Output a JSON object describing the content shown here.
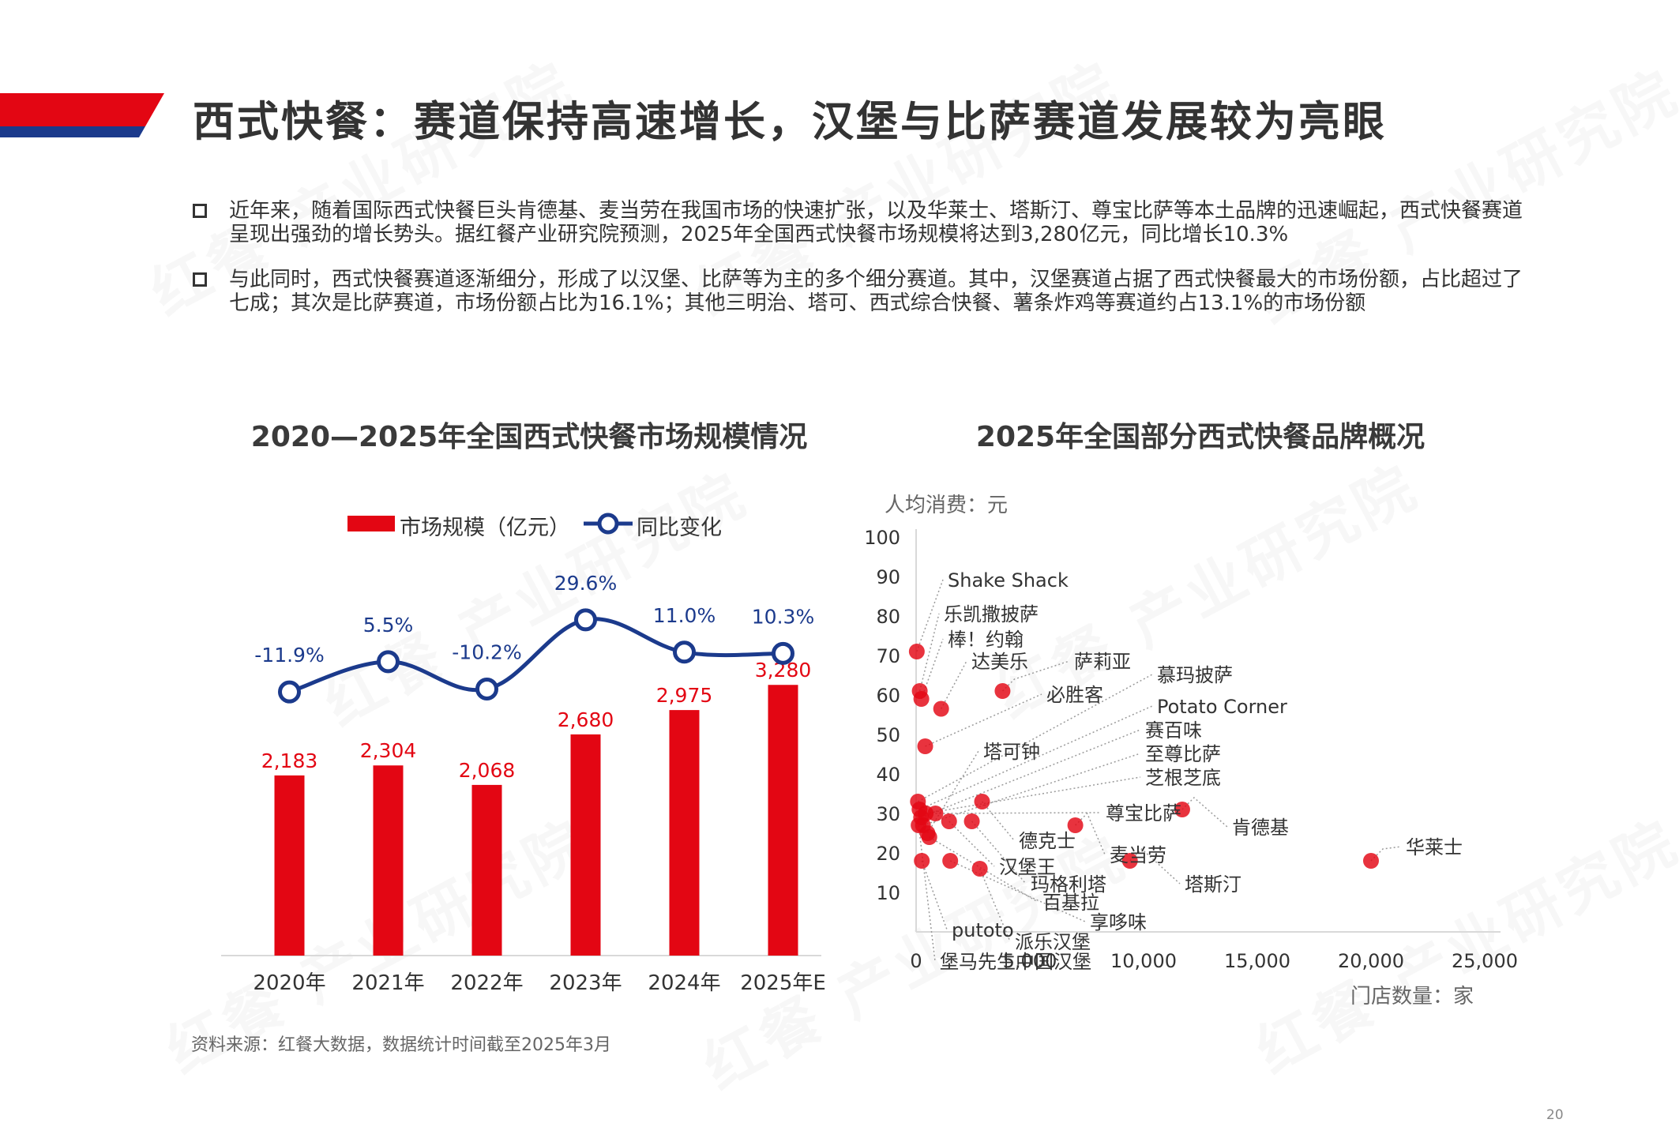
{
  "page": {
    "title": "西式快餐：赛道保持高速增长，汉堡与比萨赛道发展较为亮眼",
    "bullets": [
      "近年来，随着国际西式快餐巨头肯德基、麦当劳在我国市场的快速扩张，以及华莱士、塔斯汀、尊宝比萨等本土品牌的迅速崛起，西式快餐赛道呈现出强劲的增长势头。据红餐产业研究院预测，2025年全国西式快餐市场规模将达到3,280亿元，同比增长10.3%",
      "与此同时，西式快餐赛道逐渐细分，形成了以汉堡、比萨等为主的多个细分赛道。其中，汉堡赛道占据了西式快餐最大的市场份额，占比超过了七成；其次是比萨赛道，市场份额占比为16.1%；其他三明治、塔可、西式综合快餐、薯条炸鸡等赛道约占13.1%的市场份额"
    ],
    "source": "资料来源：红餐大数据，数据统计时间截至2025年3月",
    "page_number": "20",
    "watermark": "红餐 产业研究院",
    "colors": {
      "red": "#e30613",
      "navy": "#1b3a8c",
      "text": "#333333"
    }
  },
  "chart_data": [
    {
      "type": "bar",
      "title": "2020—2025年全国西式快餐市场规模情况",
      "categories": [
        "2020年",
        "2021年",
        "2022年",
        "2023年",
        "2024年",
        "2025年E"
      ],
      "series": [
        {
          "name": "市场规模（亿元）",
          "type": "bar",
          "values": [
            2183,
            2304,
            2068,
            2680,
            2975,
            3280
          ],
          "labels": [
            "2,183",
            "2,304",
            "2,068",
            "2,680",
            "2,975",
            "3,280"
          ]
        },
        {
          "name": "同比变化",
          "type": "line",
          "values": [
            -11.9,
            5.5,
            -10.2,
            29.6,
            11.0,
            10.3
          ],
          "labels": [
            "-11.9%",
            "5.5%",
            "-10.2%",
            "29.6%",
            "11.0%",
            "10.3%"
          ]
        }
      ],
      "legend": "top-center"
    },
    {
      "type": "scatter",
      "title": "2025年全国部分西式快餐品牌概况",
      "ylabel": "人均消费：元",
      "xlabel": "门店数量：家",
      "xlim": [
        0,
        25000
      ],
      "ylim": [
        0,
        100
      ],
      "xticks": [
        "0",
        "5,000",
        "10,000",
        "15,000",
        "20,000",
        "25,000"
      ],
      "yticks": [
        "10",
        "20",
        "30",
        "40",
        "50",
        "60",
        "70",
        "80",
        "90",
        "100"
      ],
      "points": [
        {
          "label": "Shake Shack",
          "x": 30,
          "y": 71
        },
        {
          "label": "乐凯撒披萨",
          "x": 160,
          "y": 61
        },
        {
          "label": "棒！约翰",
          "x": 230,
          "y": 59
        },
        {
          "label": "达美乐",
          "x": 1100,
          "y": 56.5
        },
        {
          "label": "萨莉亚",
          "x": 3800,
          "y": 61
        },
        {
          "label": "必胜客",
          "x": 400,
          "y": 47
        },
        {
          "label": "慕玛披萨",
          "x": 80,
          "y": 33
        },
        {
          "label": "Potato Corner",
          "x": 150,
          "y": 31
        },
        {
          "label": "赛百味",
          "x": 220,
          "y": 29
        },
        {
          "label": "至尊比萨",
          "x": 300,
          "y": 27
        },
        {
          "label": "芝根芝底",
          "x": 420,
          "y": 30
        },
        {
          "label": "塔可钟",
          "x": 500,
          "y": 25
        },
        {
          "label": "尊宝比萨",
          "x": 850,
          "y": 30
        },
        {
          "label": "肯德基",
          "x": 11700,
          "y": 31
        },
        {
          "label": "德克士",
          "x": 2900,
          "y": 33
        },
        {
          "label": "汉堡王",
          "x": 1450,
          "y": 28
        },
        {
          "label": "麦当劳",
          "x": 7000,
          "y": 27
        },
        {
          "label": "玛格利塔",
          "x": 2450,
          "y": 28
        },
        {
          "label": "百基拉",
          "x": 580,
          "y": 24
        },
        {
          "label": "塔斯汀",
          "x": 9400,
          "y": 18
        },
        {
          "label": "华莱士",
          "x": 20000,
          "y": 18
        },
        {
          "label": "享哆味",
          "x": 1500,
          "y": 18
        },
        {
          "label": "派乐汉堡",
          "x": 2800,
          "y": 16
        },
        {
          "label": "putoto",
          "x": 250,
          "y": 18
        },
        {
          "label": "堡马先生中国汉堡",
          "x": 110,
          "y": 27
        }
      ]
    }
  ]
}
